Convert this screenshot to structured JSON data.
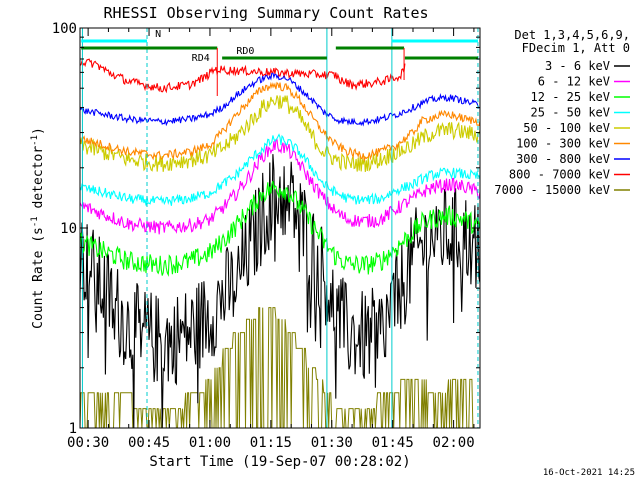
{
  "chart_data": {
    "type": "line",
    "title": "RHESSI Observing Summary Count Rates",
    "xlabel": "Start Time (19-Sep-07 00:28:02)",
    "ylabel_main": "Count Rate (s",
    "ylabel_sup": "-1",
    "ylabel_rest": " detector",
    "ylabel_end": ")",
    "footer": "16-Oct-2021 14:25",
    "xlim_minutes": [
      28.0,
      126.5
    ],
    "ylim": [
      1,
      100
    ],
    "yscale": "log",
    "x_ticks": [
      {
        "m": 30,
        "label": "00:30"
      },
      {
        "m": 45,
        "label": "00:45"
      },
      {
        "m": 60,
        "label": "01:00"
      },
      {
        "m": 75,
        "label": "01:15"
      },
      {
        "m": 90,
        "label": "01:30"
      },
      {
        "m": 105,
        "label": "01:45"
      },
      {
        "m": 120,
        "label": "02:00"
      }
    ],
    "y_tick_labels": [
      {
        "v": 1,
        "label": "1"
      },
      {
        "v": 10,
        "label": "10"
      },
      {
        "v": 100,
        "label": "100"
      }
    ],
    "legend_header": [
      "Det 1,3,4,5,6,9,",
      "FDecim 1, Att 0"
    ],
    "series": [
      {
        "name": "3 - 6 keV",
        "color": "#000000",
        "x": [
          28,
          40,
          48,
          55,
          60,
          63,
          66,
          70,
          73,
          76,
          79,
          82,
          85,
          88,
          91,
          94,
          98,
          102,
          106,
          110,
          112,
          115,
          119,
          123,
          126.5
        ],
        "y": [
          7.5,
          3.2,
          2.7,
          3.0,
          3.7,
          4.5,
          5.2,
          8.0,
          11.5,
          15.0,
          14.5,
          11.5,
          8.0,
          6.0,
          3.8,
          3.0,
          2.8,
          3.0,
          4.5,
          7.0,
          8.0,
          9.2,
          9.5,
          9.0,
          8.0
        ]
      },
      {
        "name": "6 - 12 keV",
        "color": "#ff00ff",
        "x": [
          28,
          40,
          48,
          55,
          60,
          63,
          66,
          70,
          73,
          76,
          79,
          82,
          85,
          88,
          91,
          94,
          98,
          102,
          106,
          110,
          112,
          115,
          119,
          123,
          126.5
        ],
        "y": [
          13,
          10.5,
          10.0,
          10.3,
          11.0,
          12.5,
          14.5,
          18.5,
          23,
          26,
          25,
          21,
          17,
          14,
          12,
          11,
          10.8,
          11,
          12.5,
          14,
          15,
          16,
          16.5,
          16,
          15
        ]
      },
      {
        "name": "12 - 25 keV",
        "color": "#00ff00",
        "x": [
          28,
          40,
          48,
          55,
          60,
          63,
          66,
          70,
          73,
          76,
          79,
          82,
          85,
          88,
          91,
          94,
          98,
          102,
          106,
          110,
          112,
          115,
          119,
          123,
          126.5
        ],
        "y": [
          8.5,
          6.8,
          6.5,
          6.8,
          7.5,
          8.5,
          10,
          12.5,
          15,
          16,
          15.5,
          13,
          10.5,
          8.5,
          7.2,
          6.6,
          6.5,
          6.8,
          8,
          9.5,
          10.5,
          11.2,
          11.5,
          11,
          10
        ]
      },
      {
        "name": "25 - 50 keV",
        "color": "#00ffff",
        "x": [
          28,
          40,
          48,
          55,
          60,
          63,
          66,
          70,
          73,
          76,
          79,
          82,
          85,
          88,
          91,
          94,
          98,
          102,
          106,
          110,
          112,
          115,
          119,
          123,
          126.5
        ],
        "y": [
          16,
          14,
          13.5,
          14,
          15,
          16.5,
          18,
          22,
          25,
          28,
          27,
          24,
          20,
          16.5,
          15,
          14,
          13.8,
          14,
          15.5,
          16.5,
          17.5,
          18.5,
          19,
          18.5,
          18
        ]
      },
      {
        "name": "50 - 100 keV",
        "color": "#cccc00",
        "x": [
          28,
          40,
          48,
          55,
          60,
          63,
          66,
          70,
          73,
          76,
          79,
          82,
          85,
          88,
          91,
          94,
          98,
          102,
          106,
          110,
          112,
          115,
          119,
          123,
          126.5
        ],
        "y": [
          26,
          22,
          21,
          22,
          23,
          25,
          28,
          34,
          40,
          44,
          42,
          36,
          29,
          24,
          22,
          21,
          21,
          22,
          24,
          26,
          28,
          30,
          31,
          30,
          29
        ]
      },
      {
        "name": "100 - 300 keV",
        "color": "#ff8800",
        "x": [
          28,
          40,
          48,
          55,
          60,
          63,
          66,
          70,
          73,
          76,
          79,
          82,
          85,
          88,
          91,
          94,
          98,
          102,
          106,
          110,
          112,
          115,
          119,
          123,
          126.5
        ],
        "y": [
          28,
          24,
          23,
          24,
          26,
          30,
          36,
          44,
          50,
          52,
          50,
          44,
          36,
          30,
          26,
          24,
          23,
          24,
          26,
          30,
          34,
          36,
          37,
          35,
          34
        ]
      },
      {
        "name": "300 - 800 keV",
        "color": "#0000ff",
        "x": [
          28,
          40,
          48,
          55,
          60,
          63,
          66,
          70,
          73,
          76,
          79,
          82,
          85,
          88,
          91,
          94,
          98,
          102,
          106,
          110,
          112,
          115,
          119,
          123,
          126.5
        ],
        "y": [
          39,
          35,
          34,
          35,
          37,
          40,
          45,
          52,
          56,
          58,
          56,
          50,
          44,
          38,
          35,
          34,
          34,
          35,
          37,
          40,
          42,
          44,
          45,
          43,
          41
        ]
      },
      {
        "name": "800 - 7000 keV",
        "color": "#ff0000",
        "x": [
          28,
          32,
          35,
          40,
          48,
          55,
          59,
          61,
          91,
          92,
          95,
          100,
          104,
          107,
          108
        ],
        "y": [
          68,
          66,
          60,
          54,
          50,
          52,
          57,
          62,
          58,
          55,
          52,
          53,
          55,
          58,
          65
        ]
      },
      {
        "name": "7000 - 15000 keV",
        "color": "#808000",
        "x": [
          28,
          35,
          40,
          45,
          50,
          55,
          60,
          62,
          64,
          66,
          68,
          70,
          72,
          74,
          76,
          78,
          80,
          82,
          84,
          86,
          88,
          90,
          92,
          94,
          96,
          98,
          100,
          102,
          104,
          106,
          108,
          110,
          112,
          114,
          116,
          118,
          120,
          122,
          124,
          126
        ],
        "y": [
          1.6,
          1.5,
          1.4,
          1.3,
          1.3,
          1.4,
          1.7,
          2.0,
          2.5,
          2.8,
          3.2,
          3.4,
          3.8,
          4.2,
          3.8,
          3.4,
          3.0,
          2.6,
          2.2,
          1.9,
          1.6,
          1.4,
          1.3,
          1.25,
          1.25,
          1.3,
          1.35,
          1.4,
          1.5,
          1.6,
          1.7,
          1.8,
          1.7,
          1.6,
          1.6,
          1.6,
          1.7,
          1.8,
          1.7,
          1.6
        ]
      }
    ],
    "v_lines": [
      {
        "m": 28.6,
        "style": "solid"
      },
      {
        "m": 44.5,
        "style": "dashed"
      },
      {
        "m": 88.8,
        "style": "solid"
      },
      {
        "m": 104.8,
        "style": "solid"
      },
      {
        "m": 126.0,
        "style": "dashed"
      }
    ],
    "status_bars": [
      {
        "kind": "N",
        "color": "#00ffff",
        "start": 28.3,
        "end": 44.5,
        "level": 1,
        "label": "N",
        "label_at": 46.5
      },
      {
        "kind": "N",
        "color": "#00ffff",
        "start": 104.8,
        "end": 126.0,
        "level": 1,
        "label": "",
        "label_at": 0
      },
      {
        "kind": "RD",
        "color": "#008000",
        "start": 28.3,
        "end": 61.8,
        "level": 2,
        "label": "",
        "label_at": 0
      },
      {
        "kind": "RD",
        "color": "#008000",
        "start": 63.0,
        "end": 88.8,
        "level": 3,
        "label": "RD0",
        "label_at": 66.5
      },
      {
        "kind": "RD",
        "color": "#008000",
        "start": 91.0,
        "end": 107.8,
        "level": 2,
        "label": "",
        "label_at": 0
      },
      {
        "kind": "RD",
        "color": "#008000",
        "start": 108.0,
        "end": 126.0,
        "level": 3,
        "label": "",
        "label_at": 0
      }
    ],
    "annotations": [
      {
        "text": "RD4",
        "m": 55.5,
        "level": 3
      }
    ]
  }
}
